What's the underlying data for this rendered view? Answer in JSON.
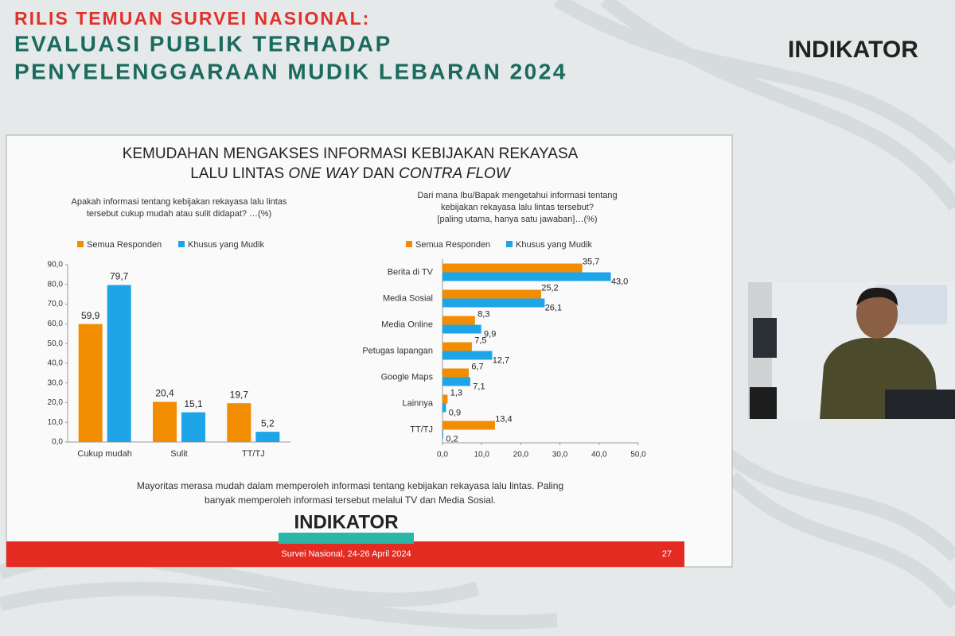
{
  "header": {
    "kicker": "RILIS TEMUAN SURVEI NASIONAL:",
    "title_lines": [
      "EVALUASI PUBLIK TERHADAP",
      "PENYELENGGARAAN MUDIK LEBARAN 2024"
    ],
    "logo": "INDIKATOR"
  },
  "slide": {
    "title_line1": "KEMUDAHAN MENGAKSES INFORMASI KEBIJAKAN REKAYASA",
    "title_line2": [
      "LALU LINTAS ",
      "ONE WAY",
      " DAN ",
      "CONTRA FLOW"
    ],
    "note_lines": [
      "Mayoritas merasa mudah dalam memperoleh informasi tentang kebijakan rekayasa lalu lintas. Paling",
      "banyak memperoleh informasi tersebut melalui TV dan Media Sosial."
    ],
    "logo": "INDIKATOR",
    "footer": "Survei Nasional, 24-26 April 2024",
    "page": "27"
  },
  "chart_data": [
    {
      "type": "bar",
      "subtitle_lines": [
        "Apakah informasi tentang kebijakan rekayasa lalu lintas",
        "tersebut cukup mudah atau sulit didapat? …(%)"
      ],
      "categories": [
        "Cukup mudah",
        "Sulit",
        "TT/TJ"
      ],
      "series": [
        {
          "name": "Semua Responden",
          "color": "#f28c00",
          "values": [
            59.9,
            20.4,
            19.7
          ],
          "value_labels": [
            "59,9",
            "20,4",
            "19,7"
          ]
        },
        {
          "name": "Khusus yang Mudik",
          "color": "#1ea5e8",
          "values": [
            79.7,
            15.1,
            5.2
          ],
          "value_labels": [
            "79,7",
            "15,1",
            "5,2"
          ]
        }
      ],
      "ylim": [
        0,
        90
      ],
      "yticks": [
        {
          "value": 0,
          "label": "0,0"
        },
        {
          "value": 10,
          "label": "10,0"
        },
        {
          "value": 20,
          "label": "20,0"
        },
        {
          "value": 30,
          "label": "30,0"
        },
        {
          "value": 40,
          "label": "40,0"
        },
        {
          "value": 50,
          "label": "50,0"
        },
        {
          "value": 60,
          "label": "60,0"
        },
        {
          "value": 70,
          "label": "70,0"
        },
        {
          "value": 80,
          "label": "80,0"
        },
        {
          "value": 90,
          "label": "90,0"
        }
      ]
    },
    {
      "type": "hbar",
      "subtitle_lines": [
        "Dari mana Ibu/Bapak mengetahui informasi tentang",
        "kebijakan rekayasa lalu lintas tersebut?",
        "[paling utama, hanya satu jawaban]…(%)"
      ],
      "categories": [
        "Berita di TV",
        "Media Sosial",
        "Media Online",
        "Petugas lapangan",
        "Google Maps",
        "Lainnya",
        "TT/TJ"
      ],
      "series": [
        {
          "name": "Semua Responden",
          "color": "#f28c00",
          "values": [
            35.7,
            25.2,
            8.3,
            7.5,
            6.7,
            1.3,
            13.4
          ],
          "value_labels": [
            "35,7",
            "25,2",
            "8,3",
            "7,5",
            "6,7",
            "1,3",
            "13,4"
          ]
        },
        {
          "name": "Khusus yang Mudik",
          "color": "#1ea5e8",
          "values": [
            43.0,
            26.1,
            9.9,
            12.7,
            7.1,
            0.9,
            0.2
          ],
          "value_labels": [
            "43,0",
            "26,1",
            "9,9",
            "12,7",
            "7,1",
            "0,9",
            "0,2"
          ]
        }
      ],
      "xlim": [
        0,
        50
      ],
      "xticks": [
        {
          "value": 0,
          "label": "0,0"
        },
        {
          "value": 10,
          "label": "10,0"
        },
        {
          "value": 20,
          "label": "20,0"
        },
        {
          "value": 30,
          "label": "30,0"
        },
        {
          "value": 40,
          "label": "40,0"
        },
        {
          "value": 50,
          "label": "50,0"
        }
      ]
    }
  ]
}
